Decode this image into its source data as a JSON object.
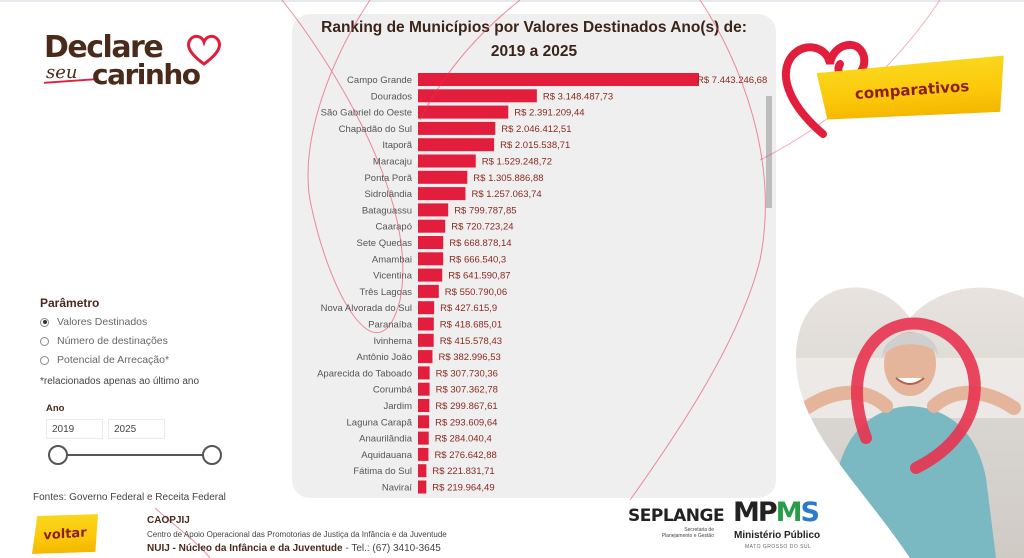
{
  "logo": {
    "line1": "Declare",
    "seu": "seu",
    "line2": "carinho"
  },
  "banners": {
    "comparativos": "comparativos",
    "voltar": "voltar"
  },
  "parameter": {
    "title": "Parâmetro",
    "options": [
      {
        "label": "Valores Destinados",
        "selected": true
      },
      {
        "label": "Número de destinações",
        "selected": false
      },
      {
        "label": "Potencial de Arrecação*",
        "selected": false
      }
    ],
    "note": "*relacionados apenas ao  último ano"
  },
  "year_filter": {
    "label": "Ano",
    "from": "2019",
    "to": "2025"
  },
  "sources": "Fontes: Governo Federal e Receita Federal",
  "footer": {
    "org": "CAOPJIJ",
    "org_desc": "Centro de Apoio Operacional das Promotorias de Justiça da Infância e da Juventude",
    "nuij_prefix": "NUIJ - Núcleo da Infância e da Juventude",
    "nuij_tel": " - Tel.: (67) 3410-3645",
    "seplange": "SEPLANGE",
    "seplange_sub": "Secretaria de Planejamento e Gestão",
    "mpms_mp": "MP",
    "mpms_m": "M",
    "mpms_s": "S",
    "mpms_sub": "Ministério Público",
    "mpms_sub2": "MATO GROSSO DO SUL"
  },
  "colors": {
    "bar": "#E31D3C",
    "value_label": "#8A2A1E",
    "title": "#3B2418"
  },
  "chart_data": {
    "type": "bar",
    "orientation": "horizontal",
    "title": "Ranking de Municípios por Valores Destinados Ano(s) de: 2019 a 2025",
    "title_line1": "Ranking de Municípios por Valores Destinados Ano(s) de:",
    "title_line2": "2019 a 2025",
    "xlabel": "",
    "ylabel": "",
    "grid": false,
    "legend": "none",
    "xlim": [
      0,
      7443246.68
    ],
    "categories": [
      "Campo Grande",
      "Dourados",
      "São Gabriel do Oeste",
      "Chapadão do Sul",
      "Itaporã",
      "Maracaju",
      "Ponta Porã",
      "Sidrolândia",
      "Bataguassu",
      "Caarapó",
      "Sete Quedas",
      "Amambai",
      "Vicentina",
      "Três Lagoas",
      "Nova Alvorada do Sul",
      "Paranaíba",
      "Ivinhema",
      "Antônio João",
      "Aparecida do Taboado",
      "Corumbá",
      "Jardim",
      "Laguna Carapã",
      "Anaurilândia",
      "Aquidauana",
      "Fátima do Sul",
      "Naviraí"
    ],
    "values": [
      7443246.68,
      3148487.73,
      2391209.44,
      2046412.51,
      2015538.71,
      1529248.72,
      1305886.88,
      1257063.74,
      799787.85,
      720723.24,
      668878.14,
      666540.3,
      641590.87,
      550790.06,
      427615.9,
      418685.01,
      415578.43,
      382996.53,
      307730.36,
      307362.78,
      299867.61,
      293609.64,
      284040.4,
      276642.88,
      221831.71,
      219964.49
    ],
    "labels": [
      "R$ 7.443.246,68",
      "R$ 3.148.487,73",
      "R$ 2.391.209,44",
      "R$ 2.046.412,51",
      "R$ 2.015.538,71",
      "R$ 1.529.248,72",
      "R$ 1.305.886,88",
      "R$ 1.257.063,74",
      "R$ 799.787,85",
      "R$ 720.723,24",
      "R$ 668.878,14",
      "R$ 666.540,3",
      "R$ 641.590,87",
      "R$ 550.790,06",
      "R$ 427.615,9",
      "R$ 418.685,01",
      "R$ 415.578,43",
      "R$ 382.996,53",
      "R$ 307.730,36",
      "R$ 307.362,78",
      "R$ 299.867,61",
      "R$ 293.609,64",
      "R$ 284.040,4",
      "R$ 276.642,88",
      "R$ 221.831,71",
      "R$ 219.964,49"
    ]
  }
}
